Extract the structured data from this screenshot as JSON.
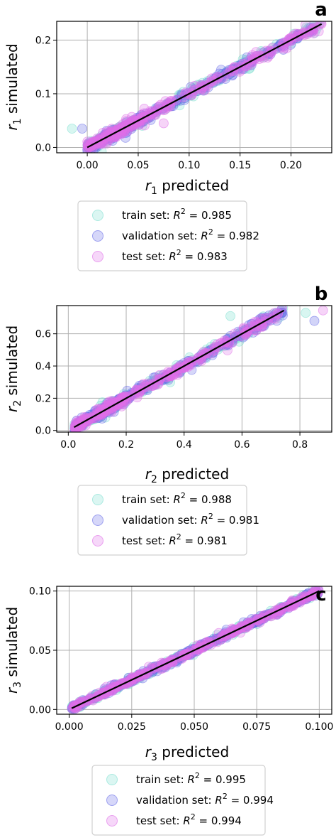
{
  "chart_data": [
    {
      "type": "scatter",
      "panel_label": "a",
      "xlabel_var": "r",
      "xlabel_sub": "1",
      "xlabel_rest": " predicted",
      "ylabel_var": "r",
      "ylabel_sub": "1",
      "ylabel_rest": " simulated",
      "xlim": [
        -0.03,
        0.24
      ],
      "ylim": [
        -0.01,
        0.235
      ],
      "xticks": [
        0.0,
        0.05,
        0.1,
        0.15,
        0.2
      ],
      "xtick_labels": [
        "0.00",
        "0.05",
        "0.10",
        "0.15",
        "0.20"
      ],
      "yticks": [
        0.0,
        0.1,
        0.2
      ],
      "ytick_labels": [
        "0.0",
        "0.1",
        "0.2"
      ],
      "grid": true,
      "identity_line": [
        0.0,
        0.23
      ],
      "series": [
        {
          "name": "train set",
          "r2_label": "= 0.985",
          "color": "#7fe0d0"
        },
        {
          "name": "validation set",
          "r2_label": "= 0.982",
          "color": "#6b6fe8"
        },
        {
          "name": "test set",
          "r2_label": "= 0.983",
          "color": "#e070e8"
        }
      ],
      "outliers": [
        [
          -0.015,
          0.035
        ],
        [
          -0.005,
          0.035
        ],
        [
          0.075,
          0.045
        ]
      ]
    },
    {
      "type": "scatter",
      "panel_label": "b",
      "xlabel_var": "r",
      "xlabel_sub": "2",
      "xlabel_rest": " predicted",
      "ylabel_var": "r",
      "ylabel_sub": "2",
      "ylabel_rest": " simulated",
      "xlim": [
        -0.04,
        0.91
      ],
      "ylim": [
        -0.01,
        0.775
      ],
      "xticks": [
        0.0,
        0.2,
        0.4,
        0.6,
        0.8
      ],
      "xtick_labels": [
        "0.0",
        "0.2",
        "0.4",
        "0.6",
        "0.8"
      ],
      "yticks": [
        0.0,
        0.2,
        0.4,
        0.6
      ],
      "ytick_labels": [
        "0.0",
        "0.2",
        "0.4",
        "0.6"
      ],
      "grid": true,
      "identity_line": [
        0.02,
        0.745
      ],
      "series": [
        {
          "name": "train set",
          "r2_label": "= 0.988",
          "color": "#7fe0d0"
        },
        {
          "name": "validation set",
          "r2_label": "= 0.981",
          "color": "#6b6fe8"
        },
        {
          "name": "test set",
          "r2_label": "= 0.981",
          "color": "#e070e8"
        }
      ],
      "outliers": [
        [
          0.56,
          0.71
        ],
        [
          0.85,
          0.68
        ],
        [
          0.88,
          0.745
        ],
        [
          0.82,
          0.73
        ]
      ]
    },
    {
      "type": "scatter",
      "panel_label": "c",
      "xlabel_var": "r",
      "xlabel_sub": "3",
      "xlabel_rest": " predicted",
      "ylabel_var": "r",
      "ylabel_sub": "3",
      "ylabel_rest": " simulated",
      "xlim": [
        -0.005,
        0.105
      ],
      "ylim": [
        -0.004,
        0.104
      ],
      "xticks": [
        0.0,
        0.025,
        0.05,
        0.075,
        0.1
      ],
      "xtick_labels": [
        "0.000",
        "0.025",
        "0.050",
        "0.075",
        "0.100"
      ],
      "yticks": [
        0.0,
        0.05,
        0.1
      ],
      "ytick_labels": [
        "0.00",
        "0.05",
        "0.10"
      ],
      "grid": true,
      "identity_line": [
        0.001,
        0.1
      ],
      "series": [
        {
          "name": "train set",
          "r2_label": "= 0.995",
          "color": "#7fe0d0"
        },
        {
          "name": "validation set",
          "r2_label": "= 0.994",
          "color": "#6b6fe8"
        },
        {
          "name": "test set",
          "r2_label": "= 0.994",
          "color": "#e070e8"
        }
      ],
      "outliers": []
    }
  ]
}
